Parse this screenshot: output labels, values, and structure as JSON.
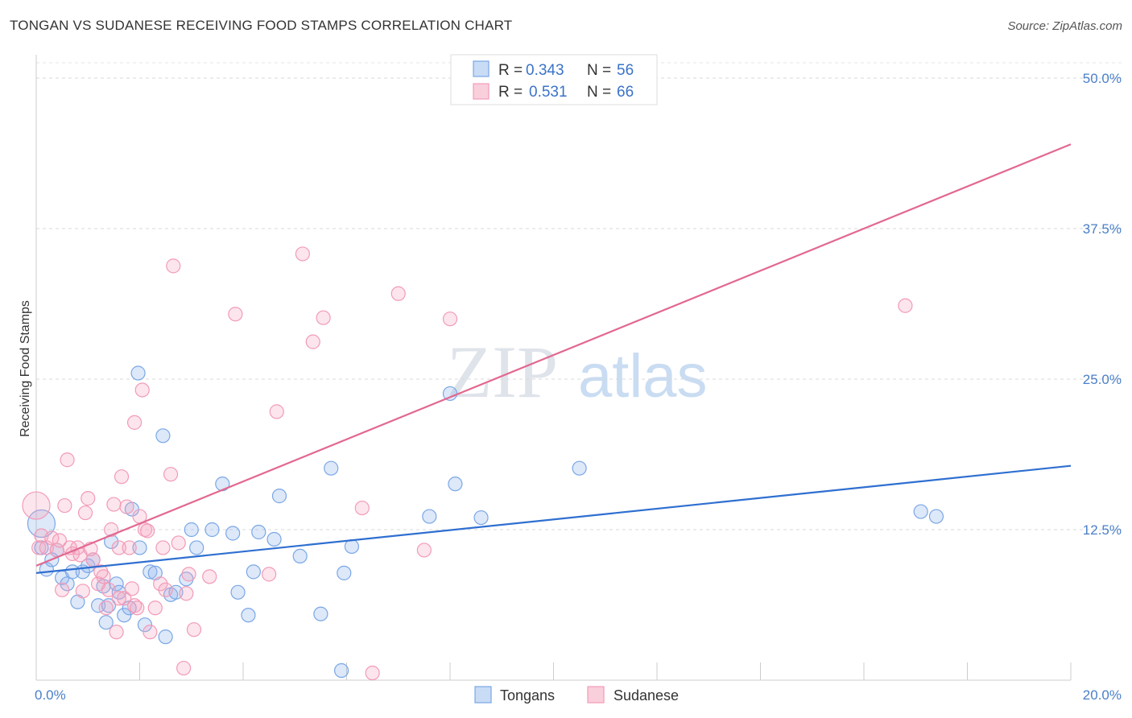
{
  "chart_data": {
    "type": "scatter",
    "title": "TONGAN VS SUDANESE RECEIVING FOOD STAMPS CORRELATION CHART",
    "source": "Source: ZipAtlas.com",
    "watermark": {
      "zip": "ZIP",
      "atlas": "atlas"
    },
    "ylabel": "Receiving Food Stamps",
    "xlim": [
      0,
      20
    ],
    "ylim": [
      0,
      50
    ],
    "x_tick_labels": {
      "min": "0.0%",
      "max": "20.0%"
    },
    "y_ticks": [
      {
        "value": 12.5,
        "label": "12.5%"
      },
      {
        "value": 25.0,
        "label": "25.0%"
      },
      {
        "value": 37.5,
        "label": "37.5%"
      },
      {
        "value": 50.0,
        "label": "50.0%"
      }
    ],
    "legend": {
      "rows": [
        {
          "r_label": "R =",
          "r": "0.343",
          "n_label": "N =",
          "n": "56",
          "color": "#7aa7e6"
        },
        {
          "r_label": "R =",
          "r": "0.531",
          "n_label": "N =",
          "n": "66",
          "color": "#f29bb7"
        }
      ]
    },
    "series": [
      {
        "name": "Tongans",
        "color": "#7aa7e6",
        "line_color": "#2f6fd0",
        "trend": {
          "x": [
            0,
            20
          ],
          "y": [
            8.9,
            17.8
          ]
        },
        "points": [
          [
            0.1,
            13.0
          ],
          [
            0.1,
            11.0
          ],
          [
            0.2,
            9.2
          ],
          [
            0.3,
            10.0
          ],
          [
            0.4,
            10.8
          ],
          [
            0.5,
            8.5
          ],
          [
            0.6,
            8.0
          ],
          [
            0.7,
            9.0
          ],
          [
            0.8,
            6.5
          ],
          [
            0.9,
            9.0
          ],
          [
            1.0,
            9.5
          ],
          [
            1.1,
            10.0
          ],
          [
            1.2,
            6.2
          ],
          [
            1.3,
            7.8
          ],
          [
            1.4,
            6.2
          ],
          [
            1.35,
            4.8
          ],
          [
            1.45,
            11.5
          ],
          [
            1.55,
            8.0
          ],
          [
            1.6,
            7.3
          ],
          [
            1.7,
            5.4
          ],
          [
            1.8,
            6.0
          ],
          [
            1.85,
            14.2
          ],
          [
            2.0,
            11.0
          ],
          [
            2.1,
            4.6
          ],
          [
            1.97,
            25.5
          ],
          [
            2.2,
            9.0
          ],
          [
            2.3,
            8.9
          ],
          [
            2.5,
            3.6
          ],
          [
            2.45,
            20.3
          ],
          [
            2.6,
            7.1
          ],
          [
            2.7,
            7.3
          ],
          [
            2.9,
            8.4
          ],
          [
            3.1,
            11.0
          ],
          [
            3.0,
            12.5
          ],
          [
            3.4,
            12.5
          ],
          [
            3.6,
            16.3
          ],
          [
            3.8,
            12.2
          ],
          [
            3.9,
            7.3
          ],
          [
            4.1,
            5.4
          ],
          [
            4.2,
            9.0
          ],
          [
            4.3,
            12.3
          ],
          [
            4.6,
            11.7
          ],
          [
            4.7,
            15.3
          ],
          [
            5.1,
            10.3
          ],
          [
            5.5,
            5.5
          ],
          [
            5.7,
            17.6
          ],
          [
            5.9,
            0.8
          ],
          [
            5.95,
            8.9
          ],
          [
            6.1,
            11.1
          ],
          [
            7.6,
            13.6
          ],
          [
            8.0,
            23.8
          ],
          [
            8.1,
            16.3
          ],
          [
            8.6,
            13.5
          ],
          [
            10.5,
            17.6
          ],
          [
            17.1,
            14.0
          ],
          [
            17.4,
            13.6
          ]
        ]
      },
      {
        "name": "Sudanese",
        "color": "#f29bb7",
        "line_color": "#e2688f",
        "trend": {
          "x": [
            0,
            20
          ],
          "y": [
            9.5,
            44.5
          ]
        },
        "points": [
          [
            0.0,
            14.5
          ],
          [
            0.05,
            11.0
          ],
          [
            0.1,
            12.0
          ],
          [
            0.2,
            11.0
          ],
          [
            0.3,
            11.8
          ],
          [
            0.4,
            10.8
          ],
          [
            0.5,
            7.5
          ],
          [
            0.55,
            14.5
          ],
          [
            0.6,
            18.3
          ],
          [
            0.7,
            10.5
          ],
          [
            0.8,
            11.0
          ],
          [
            0.85,
            10.4
          ],
          [
            0.9,
            7.4
          ],
          [
            0.95,
            13.9
          ],
          [
            1.0,
            15.1
          ],
          [
            1.1,
            10.0
          ],
          [
            1.2,
            8.0
          ],
          [
            1.3,
            8.6
          ],
          [
            1.35,
            6.0
          ],
          [
            1.4,
            7.5
          ],
          [
            1.45,
            12.5
          ],
          [
            1.5,
            14.6
          ],
          [
            1.55,
            4.0
          ],
          [
            1.6,
            11.0
          ],
          [
            1.65,
            16.9
          ],
          [
            1.7,
            6.8
          ],
          [
            1.75,
            14.4
          ],
          [
            1.8,
            11.0
          ],
          [
            1.85,
            7.6
          ],
          [
            1.9,
            21.4
          ],
          [
            1.95,
            6.0
          ],
          [
            2.0,
            13.6
          ],
          [
            2.05,
            24.1
          ],
          [
            2.1,
            12.5
          ],
          [
            2.15,
            12.4
          ],
          [
            2.2,
            4.0
          ],
          [
            2.3,
            6.0
          ],
          [
            2.4,
            8.0
          ],
          [
            2.45,
            11.0
          ],
          [
            2.5,
            7.5
          ],
          [
            2.6,
            17.1
          ],
          [
            2.65,
            34.4
          ],
          [
            2.75,
            11.4
          ],
          [
            2.85,
            1.0
          ],
          [
            2.95,
            8.8
          ],
          [
            3.05,
            4.2
          ],
          [
            3.35,
            8.6
          ],
          [
            3.85,
            30.4
          ],
          [
            4.5,
            8.8
          ],
          [
            4.65,
            22.3
          ],
          [
            5.15,
            35.4
          ],
          [
            5.35,
            28.1
          ],
          [
            5.55,
            30.1
          ],
          [
            6.3,
            14.3
          ],
          [
            6.5,
            0.6
          ],
          [
            7.0,
            32.1
          ],
          [
            7.5,
            10.8
          ],
          [
            8.0,
            30.0
          ],
          [
            1.6,
            6.8
          ],
          [
            2.9,
            7.2
          ],
          [
            1.25,
            9.0
          ],
          [
            0.65,
            11.0
          ],
          [
            1.05,
            10.9
          ],
          [
            16.8,
            31.1
          ],
          [
            0.45,
            11.6
          ],
          [
            1.9,
            6.2
          ]
        ]
      }
    ]
  }
}
